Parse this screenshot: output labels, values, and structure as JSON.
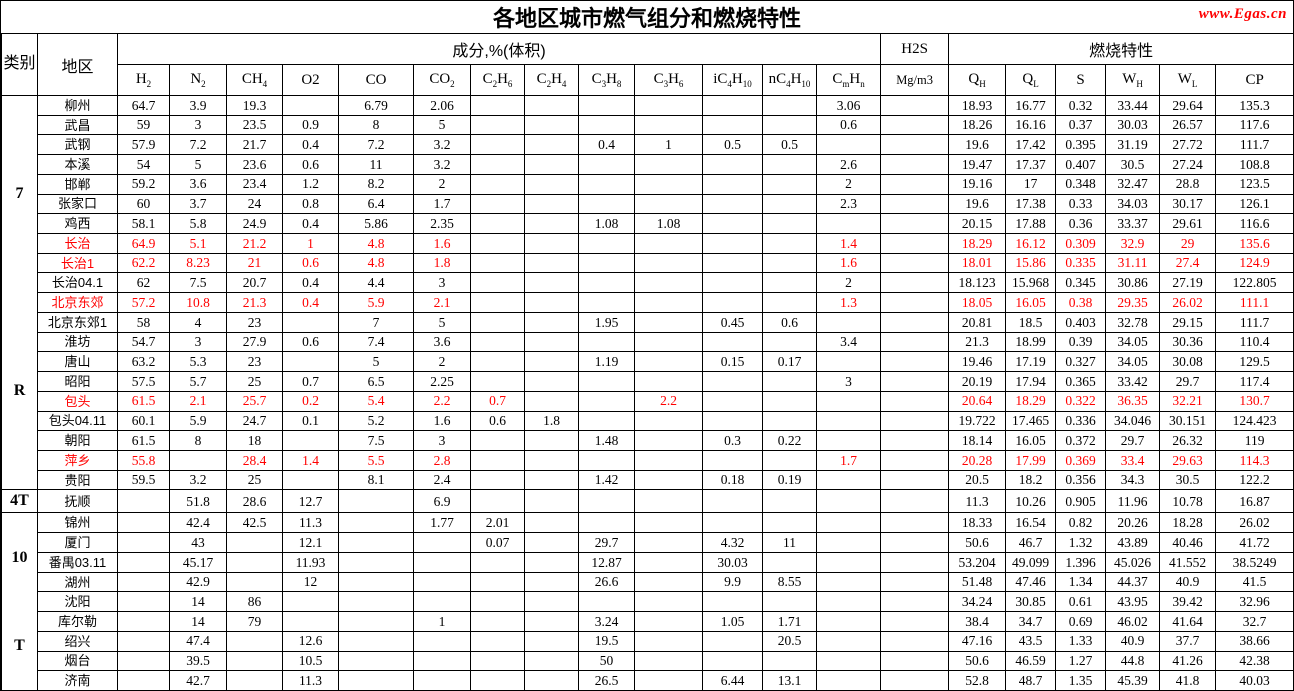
{
  "title": "各地区城市燃气组分和燃烧特性",
  "watermark": "www.Egas.cn",
  "header": {
    "category": "类别",
    "region": "地区",
    "composition": "成分,%(体积)",
    "h2s": "H2S",
    "h2s_unit": "Mg/m3",
    "combustion": "燃烧特性",
    "comp_cols": [
      "H_{2}",
      "N_{2}",
      "CH_{4}",
      "O2",
      "CO",
      "CO_{2}",
      "C_{2}H_{6}",
      "C_{2}H_{4}",
      "C_{3}H_{8}",
      "C_{3}H_{6}",
      "iC_{4}H_{10}",
      "nC_{4}H_{10}",
      "C_{m}H_{n}"
    ],
    "comb_cols": [
      "Q_{H}",
      "Q_{L}",
      "S",
      "W_{H}",
      "W_{L}",
      "CP"
    ]
  },
  "categories": [
    {
      "label": "7R",
      "display": [
        "7",
        "R"
      ],
      "start": 0,
      "rowspan": 20
    },
    {
      "label": "4T",
      "display": [
        "4T"
      ],
      "start": 20,
      "rowspan": 1
    },
    {
      "label": "10T",
      "display": [
        "10",
        "T"
      ],
      "start": 21,
      "rowspan": 9
    }
  ],
  "value_columns": [
    "H2",
    "N2",
    "CH4",
    "O2",
    "CO",
    "CO2",
    "C2H6",
    "C2H4",
    "C3H8",
    "C3H6",
    "iC4H10",
    "nC4H10",
    "CmHn",
    "H2S",
    "QH",
    "QL",
    "S",
    "WH",
    "WL",
    "CP"
  ],
  "rows": [
    {
      "region": "柳州",
      "red": false,
      "values": [
        "64.7",
        "3.9",
        "19.3",
        "",
        "6.79",
        "2.06",
        "",
        "",
        "",
        "",
        "",
        "",
        "3.06",
        "",
        "18.93",
        "16.77",
        "0.32",
        "33.44",
        "29.64",
        "135.3"
      ]
    },
    {
      "region": "武昌",
      "red": false,
      "values": [
        "59",
        "3",
        "23.5",
        "0.9",
        "8",
        "5",
        "",
        "",
        "",
        "",
        "",
        "",
        "0.6",
        "",
        "18.26",
        "16.16",
        "0.37",
        "30.03",
        "26.57",
        "117.6"
      ]
    },
    {
      "region": "武钢",
      "red": false,
      "values": [
        "57.9",
        "7.2",
        "21.7",
        "0.4",
        "7.2",
        "3.2",
        "",
        "",
        "0.4",
        "1",
        "0.5",
        "0.5",
        "",
        "",
        "19.6",
        "17.42",
        "0.395",
        "31.19",
        "27.72",
        "111.7"
      ]
    },
    {
      "region": "本溪",
      "red": false,
      "values": [
        "54",
        "5",
        "23.6",
        "0.6",
        "11",
        "3.2",
        "",
        "",
        "",
        "",
        "",
        "",
        "2.6",
        "",
        "19.47",
        "17.37",
        "0.407",
        "30.5",
        "27.24",
        "108.8"
      ]
    },
    {
      "region": "邯郸",
      "red": false,
      "values": [
        "59.2",
        "3.6",
        "23.4",
        "1.2",
        "8.2",
        "2",
        "",
        "",
        "",
        "",
        "",
        "",
        "2",
        "",
        "19.16",
        "17",
        "0.348",
        "32.47",
        "28.8",
        "123.5"
      ]
    },
    {
      "region": "张家口",
      "red": false,
      "values": [
        "60",
        "3.7",
        "24",
        "0.8",
        "6.4",
        "1.7",
        "",
        "",
        "",
        "",
        "",
        "",
        "2.3",
        "",
        "19.6",
        "17.38",
        "0.33",
        "34.03",
        "30.17",
        "126.1"
      ]
    },
    {
      "region": "鸡西",
      "red": false,
      "values": [
        "58.1",
        "5.8",
        "24.9",
        "0.4",
        "5.86",
        "2.35",
        "",
        "",
        "1.08",
        "1.08",
        "",
        "",
        "",
        "",
        "20.15",
        "17.88",
        "0.36",
        "33.37",
        "29.61",
        "116.6"
      ]
    },
    {
      "region": "长治",
      "red": true,
      "values": [
        "64.9",
        "5.1",
        "21.2",
        "1",
        "4.8",
        "1.6",
        "",
        "",
        "",
        "",
        "",
        "",
        "1.4",
        "",
        "18.29",
        "16.12",
        "0.309",
        "32.9",
        "29",
        "135.6"
      ]
    },
    {
      "region": "长治1",
      "red": true,
      "values": [
        "62.2",
        "8.23",
        "21",
        "0.6",
        "4.8",
        "1.8",
        "",
        "",
        "",
        "",
        "",
        "",
        "1.6",
        "",
        "18.01",
        "15.86",
        "0.335",
        "31.11",
        "27.4",
        "124.9"
      ]
    },
    {
      "region": "长治04.1",
      "red": false,
      "values": [
        "62",
        "7.5",
        "20.7",
        "0.4",
        "4.4",
        "3",
        "",
        "",
        "",
        "",
        "",
        "",
        "2",
        "",
        "18.123",
        "15.968",
        "0.345",
        "30.86",
        "27.19",
        "122.805"
      ]
    },
    {
      "region": "北京东郊",
      "red": true,
      "values": [
        "57.2",
        "10.8",
        "21.3",
        "0.4",
        "5.9",
        "2.1",
        "",
        "",
        "",
        "",
        "",
        "",
        "1.3",
        "",
        "18.05",
        "16.05",
        "0.38",
        "29.35",
        "26.02",
        "111.1"
      ]
    },
    {
      "region": "北京东郊1",
      "red": false,
      "values": [
        "58",
        "4",
        "23",
        "",
        "7",
        "5",
        "",
        "",
        "1.95",
        "",
        "0.45",
        "0.6",
        "",
        "",
        "20.81",
        "18.5",
        "0.403",
        "32.78",
        "29.15",
        "111.7"
      ]
    },
    {
      "region": "淮坊",
      "red": false,
      "values": [
        "54.7",
        "3",
        "27.9",
        "0.6",
        "7.4",
        "3.6",
        "",
        "",
        "",
        "",
        "",
        "",
        "3.4",
        "",
        "21.3",
        "18.99",
        "0.39",
        "34.05",
        "30.36",
        "110.4"
      ]
    },
    {
      "region": "唐山",
      "red": false,
      "values": [
        "63.2",
        "5.3",
        "23",
        "",
        "5",
        "2",
        "",
        "",
        "1.19",
        "",
        "0.15",
        "0.17",
        "",
        "",
        "19.46",
        "17.19",
        "0.327",
        "34.05",
        "30.08",
        "129.5"
      ]
    },
    {
      "region": "昭阳",
      "red": false,
      "values": [
        "57.5",
        "5.7",
        "25",
        "0.7",
        "6.5",
        "2.25",
        "",
        "",
        "",
        "",
        "",
        "",
        "3",
        "",
        "20.19",
        "17.94",
        "0.365",
        "33.42",
        "29.7",
        "117.4"
      ]
    },
    {
      "region": "包头",
      "red": true,
      "values": [
        "61.5",
        "2.1",
        "25.7",
        "0.2",
        "5.4",
        "2.2",
        "0.7",
        "",
        "",
        "2.2",
        "",
        "",
        "",
        "",
        "20.64",
        "18.29",
        "0.322",
        "36.35",
        "32.21",
        "130.7"
      ]
    },
    {
      "region": "包头04.11",
      "red": false,
      "values": [
        "60.1",
        "5.9",
        "24.7",
        "0.1",
        "5.2",
        "1.6",
        "0.6",
        "1.8",
        "",
        "",
        "",
        "",
        "",
        "",
        "19.722",
        "17.465",
        "0.336",
        "34.046",
        "30.151",
        "124.423"
      ]
    },
    {
      "region": "朝阳",
      "red": false,
      "values": [
        "61.5",
        "8",
        "18",
        "",
        "7.5",
        "3",
        "",
        "",
        "1.48",
        "",
        "0.3",
        "0.22",
        "",
        "",
        "18.14",
        "16.05",
        "0.372",
        "29.7",
        "26.32",
        "119"
      ]
    },
    {
      "region": "萍乡",
      "red": true,
      "values": [
        "55.8",
        "",
        "28.4",
        "1.4",
        "5.5",
        "2.8",
        "",
        "",
        "",
        "",
        "",
        "",
        "1.7",
        "",
        "20.28",
        "17.99",
        "0.369",
        "33.4",
        "29.63",
        "114.3"
      ]
    },
    {
      "region": "贵阳",
      "red": false,
      "values": [
        "59.5",
        "3.2",
        "25",
        "",
        "8.1",
        "2.4",
        "",
        "",
        "1.42",
        "",
        "0.18",
        "0.19",
        "",
        "",
        "20.5",
        "18.2",
        "0.356",
        "34.3",
        "30.5",
        "122.2"
      ]
    },
    {
      "region": "抚顺",
      "red": false,
      "values": [
        "",
        "51.8",
        "28.6",
        "12.7",
        "",
        "6.9",
        "",
        "",
        "",
        "",
        "",
        "",
        "",
        "",
        "11.3",
        "10.26",
        "0.905",
        "11.96",
        "10.78",
        "16.87"
      ]
    },
    {
      "region": "锦州",
      "red": false,
      "values": [
        "",
        "42.4",
        "42.5",
        "11.3",
        "",
        "1.77",
        "2.01",
        "",
        "",
        "",
        "",
        "",
        "",
        "",
        "18.33",
        "16.54",
        "0.82",
        "20.26",
        "18.28",
        "26.02"
      ]
    },
    {
      "region": "厦门",
      "red": false,
      "values": [
        "",
        "43",
        "",
        "12.1",
        "",
        "",
        "0.07",
        "",
        "29.7",
        "",
        "4.32",
        "11",
        "",
        "",
        "50.6",
        "46.7",
        "1.32",
        "43.89",
        "40.46",
        "41.72"
      ]
    },
    {
      "region": "番禺03.11",
      "red": false,
      "values": [
        "",
        "45.17",
        "",
        "11.93",
        "",
        "",
        "",
        "",
        "12.87",
        "",
        "30.03",
        "",
        "",
        "",
        "53.204",
        "49.099",
        "1.396",
        "45.026",
        "41.552",
        "38.5249"
      ]
    },
    {
      "region": "湖州",
      "red": false,
      "values": [
        "",
        "42.9",
        "",
        "12",
        "",
        "",
        "",
        "",
        "26.6",
        "",
        "9.9",
        "8.55",
        "",
        "",
        "51.48",
        "47.46",
        "1.34",
        "44.37",
        "40.9",
        "41.5"
      ]
    },
    {
      "region": "沈阳",
      "red": false,
      "values": [
        "",
        "14",
        "86",
        "",
        "",
        "",
        "",
        "",
        "",
        "",
        "",
        "",
        "",
        "",
        "34.24",
        "30.85",
        "0.61",
        "43.95",
        "39.42",
        "32.96"
      ]
    },
    {
      "region": "库尔勒",
      "red": false,
      "values": [
        "",
        "14",
        "79",
        "",
        "",
        "1",
        "",
        "",
        "3.24",
        "",
        "1.05",
        "1.71",
        "",
        "",
        "38.4",
        "34.7",
        "0.69",
        "46.02",
        "41.64",
        "32.7"
      ]
    },
    {
      "region": "绍兴",
      "red": false,
      "values": [
        "",
        "47.4",
        "",
        "12.6",
        "",
        "",
        "",
        "",
        "19.5",
        "",
        "",
        "20.5",
        "",
        "",
        "47.16",
        "43.5",
        "1.33",
        "40.9",
        "37.7",
        "38.66"
      ]
    },
    {
      "region": "烟台",
      "red": false,
      "values": [
        "",
        "39.5",
        "",
        "10.5",
        "",
        "",
        "",
        "",
        "50",
        "",
        "",
        "",
        "",
        "",
        "50.6",
        "46.59",
        "1.27",
        "44.8",
        "41.26",
        "42.38"
      ]
    },
    {
      "region": "济南",
      "red": false,
      "values": [
        "",
        "42.7",
        "",
        "11.3",
        "",
        "",
        "",
        "",
        "26.5",
        "",
        "6.44",
        "13.1",
        "",
        "",
        "52.8",
        "48.7",
        "1.35",
        "45.39",
        "41.8",
        "40.03"
      ]
    }
  ]
}
